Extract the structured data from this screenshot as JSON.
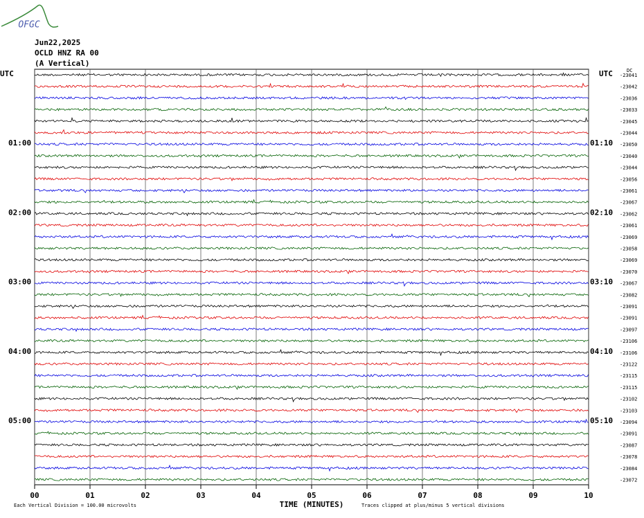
{
  "logo": "OFGC",
  "chart_data": {
    "type": "helicorder",
    "date": "Jun22,2025",
    "station": "OCLD HNZ RA 00",
    "component": "(A Vertical)",
    "dc_label": "DC",
    "xlabel": "TIME (MINUTES)",
    "scale_note": "Each Vertical Division =  100.00 microvolts",
    "clip_note": "Traces clipped at plus/minus 5 vertical divisions",
    "xlim": [
      0,
      10
    ],
    "xticks": [
      {
        "value": 0,
        "label": "00"
      },
      {
        "value": 1,
        "label": "01"
      },
      {
        "value": 2,
        "label": "02"
      },
      {
        "value": 3,
        "label": "03"
      },
      {
        "value": 4,
        "label": "04"
      },
      {
        "value": 5,
        "label": "05"
      },
      {
        "value": 6,
        "label": "06"
      },
      {
        "value": 7,
        "label": "07"
      },
      {
        "value": 8,
        "label": "08"
      },
      {
        "value": 9,
        "label": "09"
      },
      {
        "value": 10,
        "label": "10"
      }
    ],
    "trace_colors": [
      "#000000",
      "#e00000",
      "#0000e0",
      "#006000"
    ],
    "left_labels": [
      {
        "row": 0,
        "label": "UTC"
      },
      {
        "row": 6,
        "label": "01:00"
      },
      {
        "row": 12,
        "label": "02:00"
      },
      {
        "row": 18,
        "label": "03:00"
      },
      {
        "row": 24,
        "label": "04:00"
      },
      {
        "row": 30,
        "label": "05:00"
      }
    ],
    "right_labels": [
      {
        "row": 0,
        "label": "UTC"
      },
      {
        "row": 6,
        "label": "01:10"
      },
      {
        "row": 12,
        "label": "02:10"
      },
      {
        "row": 18,
        "label": "03:10"
      },
      {
        "row": 24,
        "label": "04:10"
      },
      {
        "row": 30,
        "label": "05:10"
      }
    ],
    "row_offsets": [
      -23041,
      -23042,
      -23036,
      -23033,
      -23045,
      -23044,
      -23050,
      -23040,
      -23044,
      -23056,
      -23061,
      -23067,
      -23062,
      -23061,
      -23069,
      -23058,
      -23069,
      -23070,
      -23067,
      -23082,
      -23091,
      -23091,
      -23097,
      -23106,
      -23106,
      -23122,
      -23115,
      -23115,
      -23102,
      -23103,
      -23094,
      -23091,
      -23087,
      -23078,
      -23084,
      -23072
    ]
  }
}
